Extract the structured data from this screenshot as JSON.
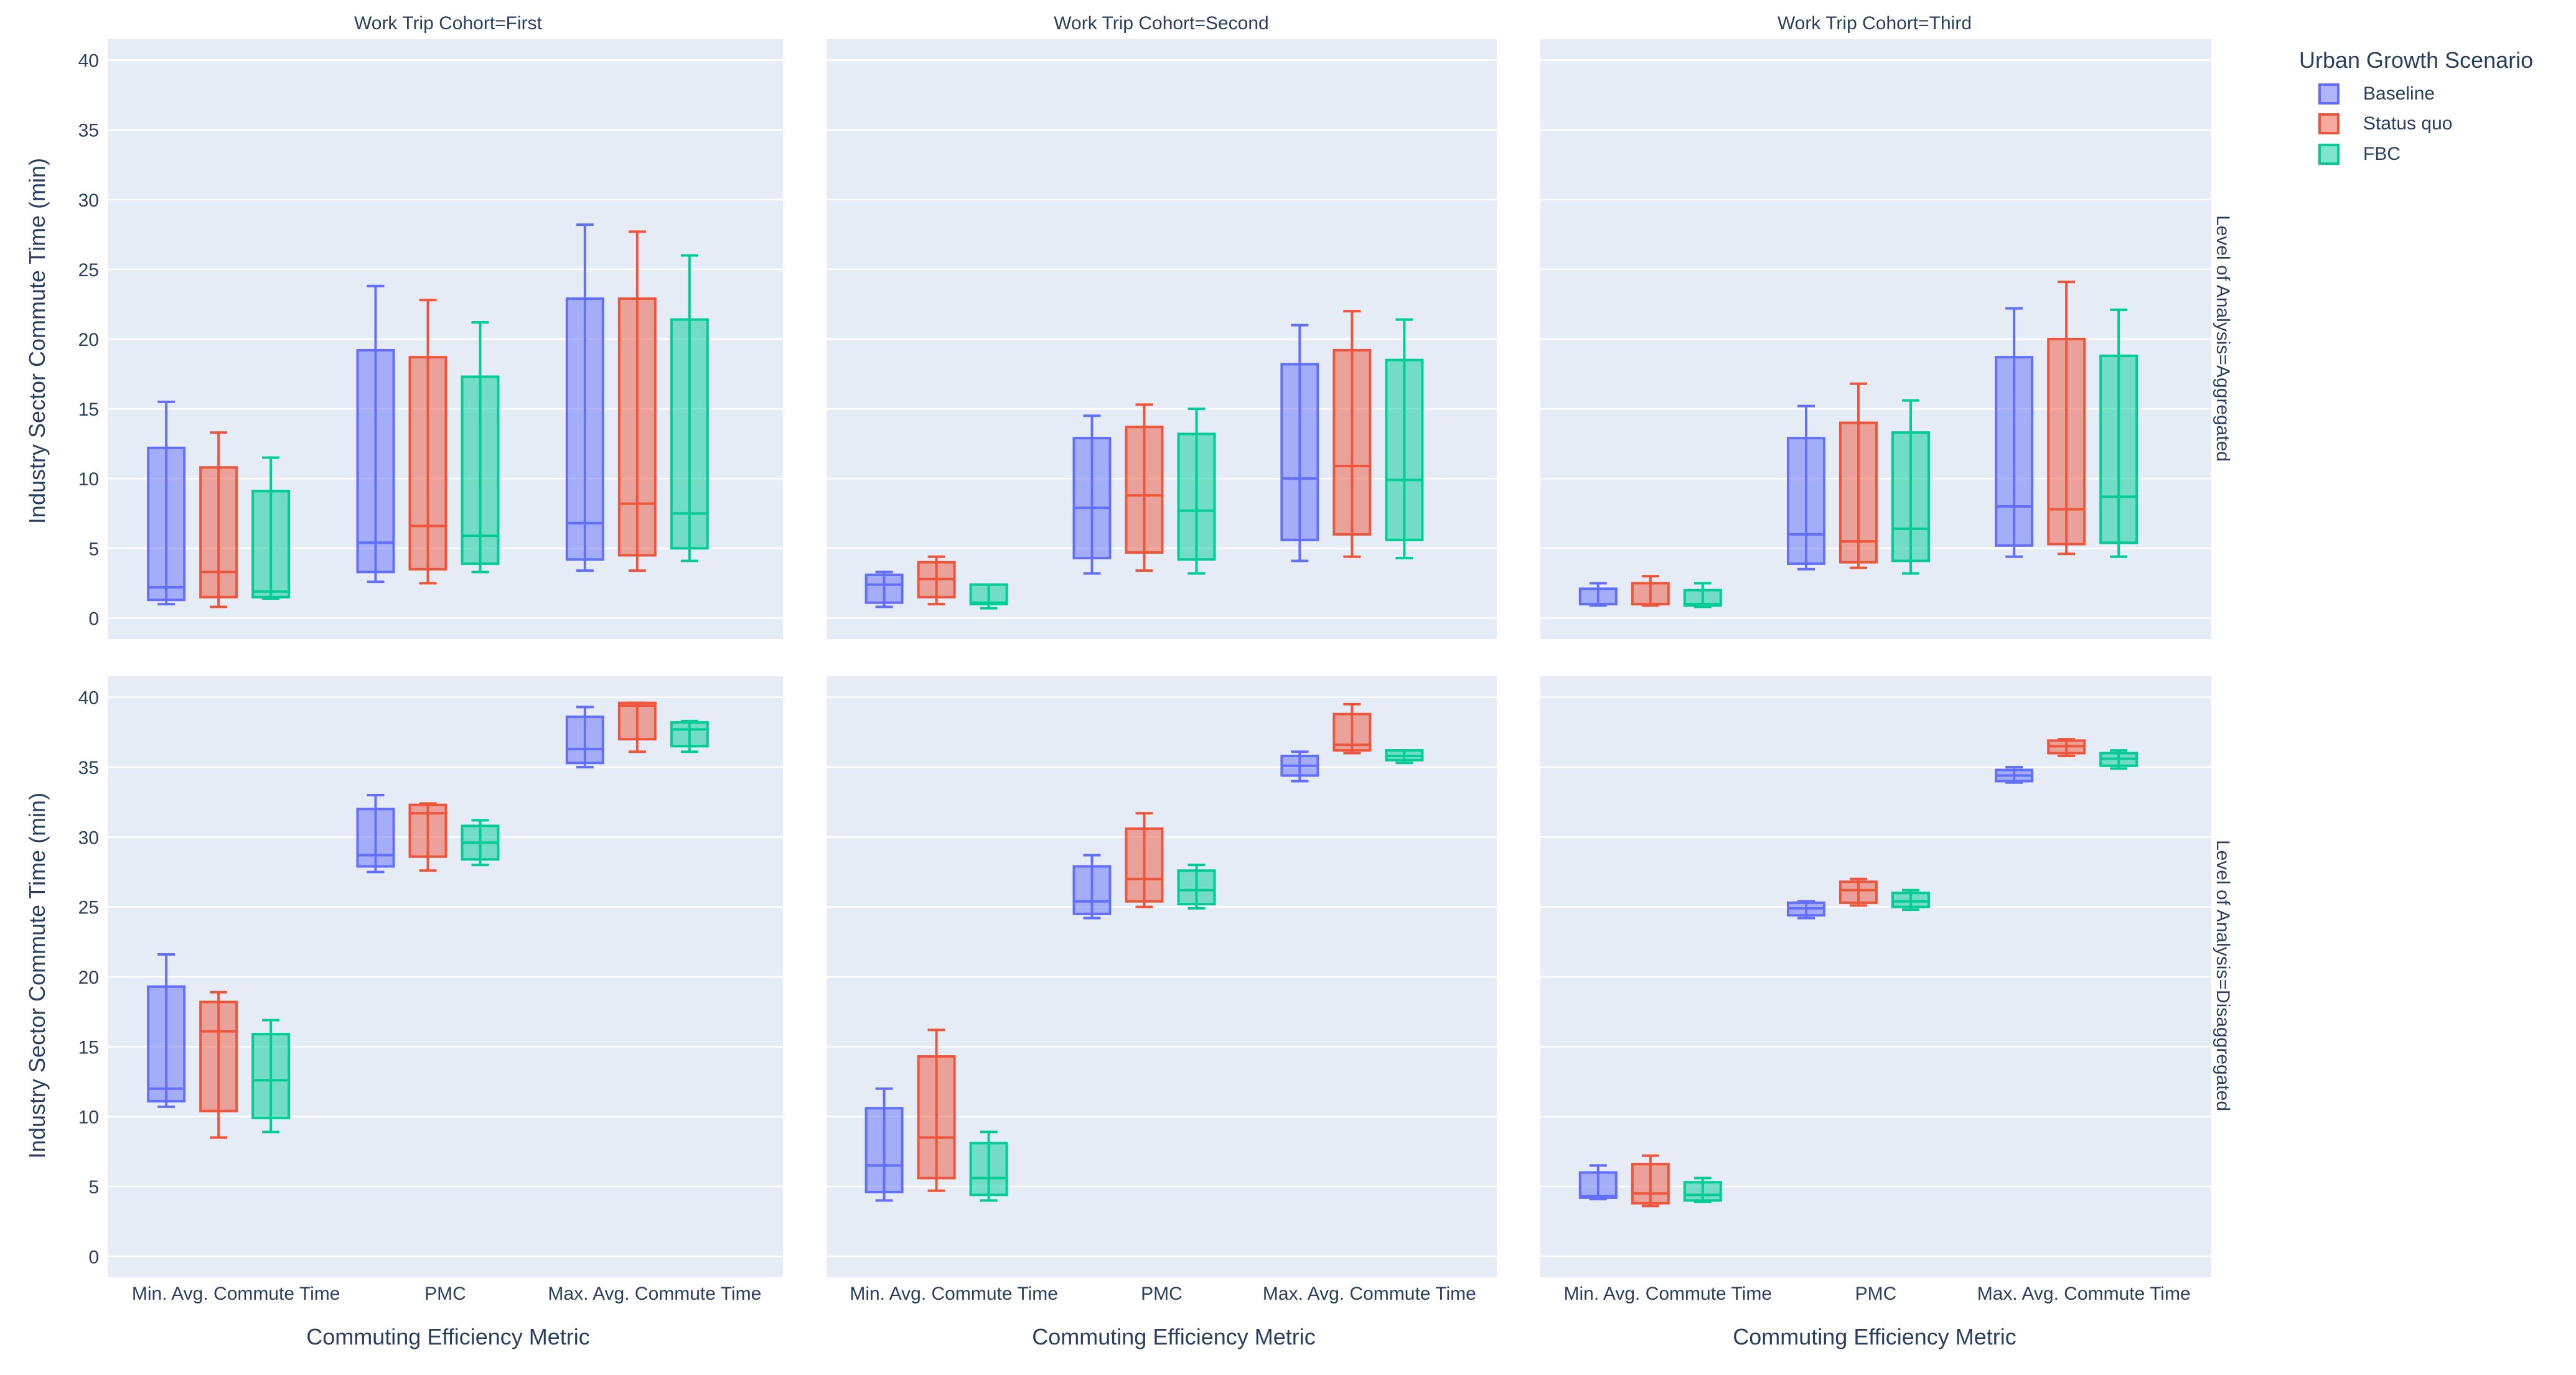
{
  "chart_data": {
    "type": "box",
    "y_axis_title": "Industry Sector Commute Time (min)",
    "x_axis_title": "Commuting Efficiency Metric",
    "categories": [
      "Min. Avg. Commute Time",
      "PMC",
      "Max. Avg. Commute Time"
    ],
    "y_ticks": [
      0,
      5,
      10,
      15,
      20,
      25,
      30,
      35,
      40
    ],
    "ylim": [
      -1.5,
      41.5
    ],
    "legend": {
      "title": "Urban Growth Scenario",
      "position": "top-right",
      "items": [
        {
          "name": "Baseline",
          "color": "#636efa"
        },
        {
          "name": "Status quo",
          "color": "#ef553b"
        },
        {
          "name": "FBC",
          "color": "#00cc96"
        }
      ]
    },
    "column_facets": [
      "Work Trip Cohort=First",
      "Work Trip Cohort=Second",
      "Work Trip Cohort=Third"
    ],
    "row_facets": [
      "Level of Analysis=Aggregated",
      "Level of Analysis=Disaggregated"
    ],
    "boxes_note": "Each box is [min, q1, median, q3, max], ordered by category then scenario (Baseline, Status quo, FBC).",
    "panels": [
      {
        "row": 0,
        "col": 0,
        "boxes": [
          [
            [
              1.0,
              1.3,
              2.2,
              12.2,
              15.5
            ],
            [
              0.8,
              1.5,
              3.3,
              10.8,
              13.3
            ],
            [
              1.4,
              1.5,
              1.9,
              9.1,
              11.5
            ]
          ],
          [
            [
              2.6,
              3.3,
              5.4,
              19.2,
              23.8
            ],
            [
              2.5,
              3.5,
              6.6,
              18.7,
              22.8
            ],
            [
              3.3,
              3.9,
              5.9,
              17.3,
              21.2
            ]
          ],
          [
            [
              3.4,
              4.2,
              6.8,
              22.9,
              28.2
            ],
            [
              3.4,
              4.5,
              8.2,
              22.9,
              27.7
            ],
            [
              4.1,
              5.0,
              7.5,
              21.4,
              26.0
            ]
          ]
        ]
      },
      {
        "row": 0,
        "col": 1,
        "boxes": [
          [
            [
              0.8,
              1.1,
              2.4,
              3.1,
              3.3
            ],
            [
              1.0,
              1.5,
              2.8,
              4.0,
              4.4
            ],
            [
              0.7,
              1.0,
              1.1,
              2.4,
              2.4
            ]
          ],
          [
            [
              3.2,
              4.3,
              7.9,
              12.9,
              14.5
            ],
            [
              3.4,
              4.7,
              8.8,
              13.7,
              15.3
            ],
            [
              3.2,
              4.2,
              7.7,
              13.2,
              15.0
            ]
          ],
          [
            [
              4.1,
              5.6,
              10.0,
              18.2,
              21.0
            ],
            [
              4.4,
              6.0,
              10.9,
              19.2,
              22.0
            ],
            [
              4.3,
              5.6,
              9.9,
              18.5,
              21.4
            ]
          ]
        ]
      },
      {
        "row": 0,
        "col": 2,
        "boxes": [
          [
            [
              0.9,
              1.0,
              1.0,
              2.1,
              2.5
            ],
            [
              0.9,
              1.0,
              1.0,
              2.5,
              3.0
            ],
            [
              0.8,
              0.9,
              1.0,
              2.0,
              2.5
            ]
          ],
          [
            [
              3.5,
              3.9,
              6.0,
              12.9,
              15.2
            ],
            [
              3.6,
              4.0,
              5.5,
              14.0,
              16.8
            ],
            [
              3.2,
              4.1,
              6.4,
              13.3,
              15.6
            ]
          ],
          [
            [
              4.4,
              5.2,
              8.0,
              18.7,
              22.2
            ],
            [
              4.6,
              5.3,
              7.8,
              20.0,
              24.1
            ],
            [
              4.4,
              5.4,
              8.7,
              18.8,
              22.1
            ]
          ]
        ]
      },
      {
        "row": 1,
        "col": 0,
        "boxes": [
          [
            [
              10.7,
              11.1,
              12.0,
              19.3,
              21.6
            ],
            [
              8.5,
              10.4,
              16.1,
              18.2,
              18.9
            ],
            [
              8.9,
              9.9,
              12.6,
              15.9,
              16.9
            ]
          ],
          [
            [
              27.5,
              27.9,
              28.7,
              32.0,
              33.0
            ],
            [
              27.6,
              28.6,
              31.7,
              32.3,
              32.4
            ],
            [
              28.0,
              28.4,
              29.6,
              30.8,
              31.2
            ]
          ],
          [
            [
              35.0,
              35.3,
              36.3,
              38.6,
              39.3
            ],
            [
              36.1,
              37.0,
              39.4,
              39.6,
              39.6
            ],
            [
              36.1,
              36.5,
              37.7,
              38.2,
              38.3
            ]
          ]
        ]
      },
      {
        "row": 1,
        "col": 1,
        "boxes": [
          [
            [
              4.0,
              4.6,
              6.5,
              10.6,
              12.0
            ],
            [
              4.7,
              5.6,
              8.5,
              14.3,
              16.2
            ],
            [
              4.0,
              4.4,
              5.6,
              8.1,
              8.9
            ]
          ],
          [
            [
              24.2,
              24.5,
              25.4,
              27.9,
              28.7
            ],
            [
              25.0,
              25.4,
              27.0,
              30.6,
              31.7
            ],
            [
              24.9,
              25.2,
              26.2,
              27.6,
              28.0
            ]
          ],
          [
            [
              34.0,
              34.4,
              35.1,
              35.8,
              36.1
            ],
            [
              36.0,
              36.2,
              36.6,
              38.8,
              39.5
            ],
            [
              35.3,
              35.5,
              35.8,
              36.2,
              36.2
            ]
          ]
        ]
      },
      {
        "row": 1,
        "col": 2,
        "boxes": [
          [
            [
              4.1,
              4.2,
              4.3,
              6.0,
              6.5
            ],
            [
              3.6,
              3.8,
              4.5,
              6.6,
              7.2
            ],
            [
              3.9,
              4.0,
              4.4,
              5.3,
              5.6
            ]
          ],
          [
            [
              24.2,
              24.4,
              24.9,
              25.3,
              25.4
            ],
            [
              25.1,
              25.3,
              26.2,
              26.8,
              27.0
            ],
            [
              24.8,
              25.0,
              25.4,
              26.0,
              26.2
            ]
          ],
          [
            [
              33.9,
              34.0,
              34.4,
              34.8,
              35.0
            ],
            [
              35.8,
              36.0,
              36.5,
              36.9,
              37.0
            ],
            [
              34.9,
              35.1,
              35.6,
              36.0,
              36.2
            ]
          ]
        ]
      }
    ]
  }
}
